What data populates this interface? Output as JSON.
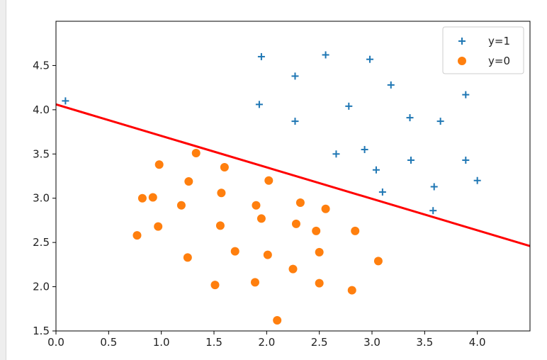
{
  "chart_data": {
    "type": "scatter",
    "xlim": [
      0.0,
      4.5
    ],
    "ylim": [
      1.5,
      5.0
    ],
    "xticks": [
      0.0,
      0.5,
      1.0,
      1.5,
      2.0,
      2.5,
      3.0,
      3.5,
      4.0
    ],
    "yticks": [
      1.5,
      2.0,
      2.5,
      3.0,
      3.5,
      4.0,
      4.5
    ],
    "xtick_labels": [
      "0.0",
      "0.5",
      "1.0",
      "1.5",
      "2.0",
      "2.5",
      "3.0",
      "3.5",
      "4.0"
    ],
    "ytick_labels": [
      "1.5",
      "2.0",
      "2.5",
      "3.0",
      "3.5",
      "4.0",
      "4.5"
    ],
    "grid": false,
    "legend_position": "top-right",
    "series": [
      {
        "name": "y=1",
        "marker": "plus",
        "color": "#1f77b4",
        "points": [
          [
            0.09,
            4.1
          ],
          [
            1.95,
            4.6
          ],
          [
            2.56,
            4.62
          ],
          [
            2.98,
            4.57
          ],
          [
            2.27,
            4.38
          ],
          [
            3.18,
            4.28
          ],
          [
            1.93,
            4.06
          ],
          [
            2.78,
            4.04
          ],
          [
            3.89,
            4.17
          ],
          [
            2.27,
            3.87
          ],
          [
            3.36,
            3.91
          ],
          [
            3.65,
            3.87
          ],
          [
            2.66,
            3.5
          ],
          [
            2.93,
            3.55
          ],
          [
            3.37,
            3.43
          ],
          [
            3.89,
            3.43
          ],
          [
            3.04,
            3.32
          ],
          [
            3.1,
            3.07
          ],
          [
            3.59,
            3.13
          ],
          [
            4.0,
            3.2
          ],
          [
            3.58,
            2.86
          ]
        ]
      },
      {
        "name": "y=0",
        "marker": "circle",
        "color": "#ff7f0e",
        "points": [
          [
            1.33,
            3.51
          ],
          [
            0.98,
            3.38
          ],
          [
            1.6,
            3.35
          ],
          [
            1.26,
            3.19
          ],
          [
            2.02,
            3.2
          ],
          [
            0.82,
            3.0
          ],
          [
            0.92,
            3.01
          ],
          [
            1.57,
            3.06
          ],
          [
            1.19,
            2.92
          ],
          [
            1.9,
            2.92
          ],
          [
            2.32,
            2.95
          ],
          [
            2.56,
            2.88
          ],
          [
            1.95,
            2.77
          ],
          [
            0.97,
            2.68
          ],
          [
            1.56,
            2.69
          ],
          [
            2.28,
            2.71
          ],
          [
            2.47,
            2.63
          ],
          [
            2.84,
            2.63
          ],
          [
            0.77,
            2.58
          ],
          [
            1.7,
            2.4
          ],
          [
            2.5,
            2.39
          ],
          [
            1.25,
            2.33
          ],
          [
            2.01,
            2.36
          ],
          [
            3.06,
            2.29
          ],
          [
            2.25,
            2.2
          ],
          [
            1.51,
            2.02
          ],
          [
            1.89,
            2.05
          ],
          [
            2.5,
            2.04
          ],
          [
            2.81,
            1.96
          ],
          [
            2.1,
            1.62
          ]
        ]
      }
    ],
    "lines": [
      {
        "color": "#ff0000",
        "points": [
          [
            0.0,
            4.06
          ],
          [
            4.5,
            2.46
          ]
        ]
      }
    ]
  }
}
